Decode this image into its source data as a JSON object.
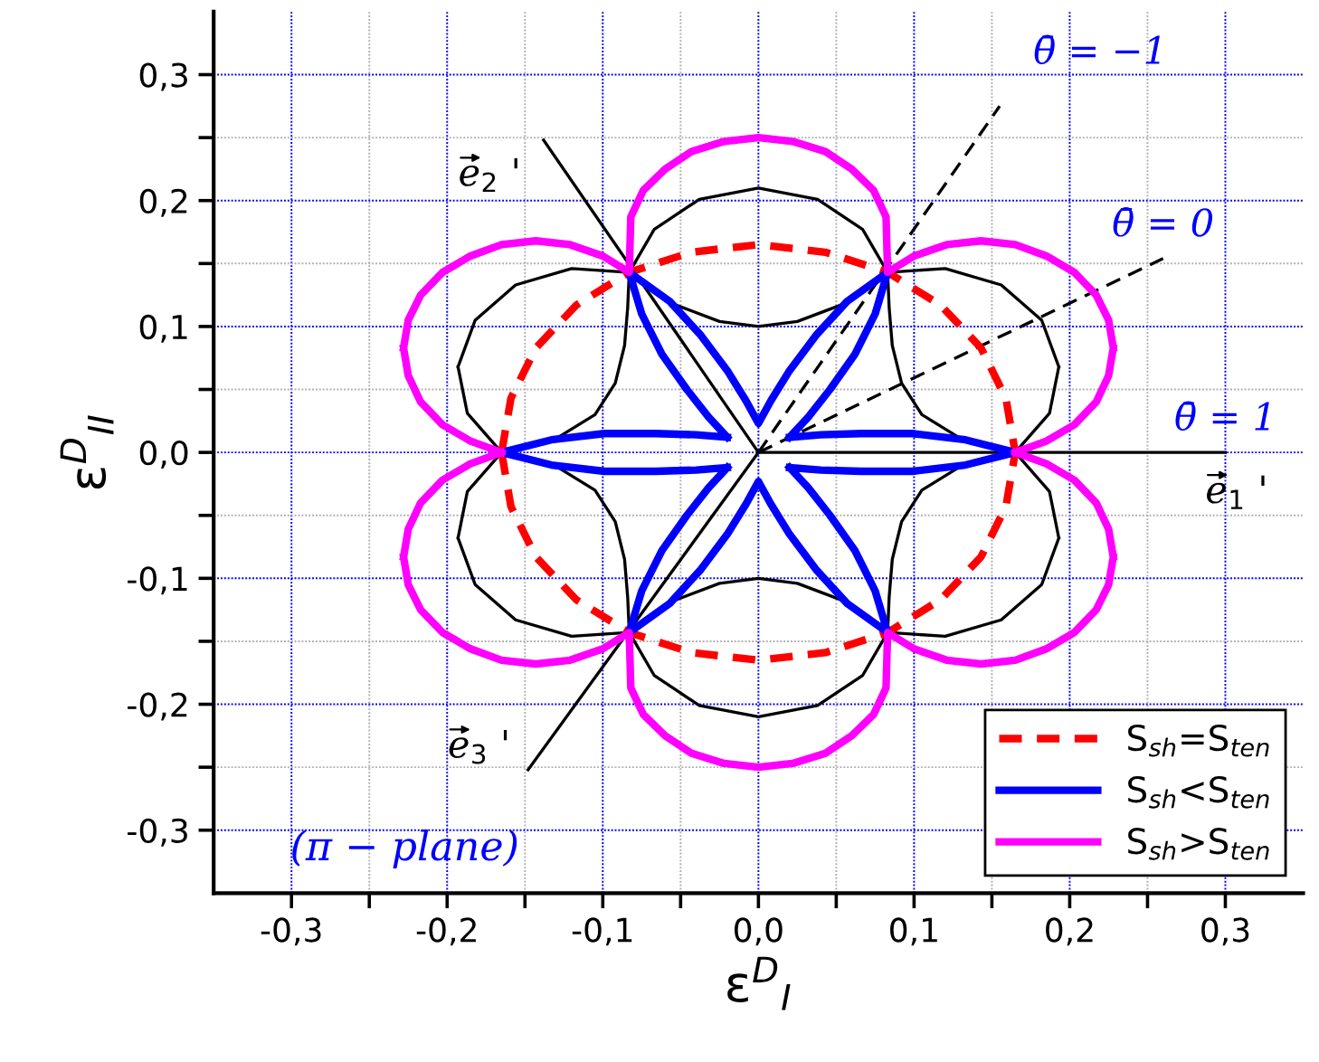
{
  "chart_data": {
    "type": "line",
    "xlabel": "ε$^{D}$$_{I}$",
    "ylabel": "ε$^{D}$$_{II}$",
    "xlim": [
      -0.35,
      0.35
    ],
    "ylim": [
      -0.35,
      0.35
    ],
    "xticks": [
      {
        "value": -0.3,
        "label": "-0,3"
      },
      {
        "value": -0.25,
        "label": null
      },
      {
        "value": -0.2,
        "label": "-0,2"
      },
      {
        "value": -0.15,
        "label": null
      },
      {
        "value": -0.1,
        "label": "-0,1"
      },
      {
        "value": -0.05,
        "label": null
      },
      {
        "value": 0,
        "label": "0,0"
      },
      {
        "value": 0.05,
        "label": null
      },
      {
        "value": 0.1,
        "label": "0,1"
      },
      {
        "value": 0.15,
        "label": null
      },
      {
        "value": 0.2,
        "label": "0,2"
      },
      {
        "value": 0.25,
        "label": null
      },
      {
        "value": 0.3,
        "label": "0,3"
      }
    ],
    "yticks": [
      {
        "value": -0.3,
        "label": "-0,3"
      },
      {
        "value": -0.25,
        "label": null
      },
      {
        "value": -0.2,
        "label": "-0,2"
      },
      {
        "value": -0.15,
        "label": null
      },
      {
        "value": -0.1,
        "label": "-0,1"
      },
      {
        "value": -0.05,
        "label": null
      },
      {
        "value": 0,
        "label": "0,0"
      },
      {
        "value": 0.05,
        "label": null
      },
      {
        "value": 0.1,
        "label": "0,1"
      },
      {
        "value": 0.15,
        "label": null
      },
      {
        "value": 0.2,
        "label": "0,2"
      },
      {
        "value": 0.25,
        "label": null
      },
      {
        "value": 0.3,
        "label": "0,3"
      }
    ],
    "grid": true,
    "legend": "bottom right",
    "annotations": [
      {
        "text": "θ̄ = −1",
        "x": 0.155,
        "y": 0.275
      },
      {
        "text": "θ̄ = 0",
        "x": 0.26,
        "y": 0.154
      },
      {
        "text": "θ̄ = 1",
        "x": 0.3,
        "y": 0
      },
      {
        "text": "e$_{1}$ '",
        "x": 0.3,
        "y": 0
      },
      {
        "text": "e$_{2}$ '",
        "x": -0.138,
        "y": 0.248
      },
      {
        "text": "e$_{3}$ '",
        "x": -0.148,
        "y": -0.252
      },
      "(π − plane)"
    ],
    "series": [
      {
        "type": "line",
        "color": "#000000",
        "line_style": "solid",
        "x": [
          0.165,
          0.187,
          0.193,
          null,
          0.193,
          0.182,
          0.156,
          0.12,
          0.083,
          0.067,
          0.038,
          0,
          -0.038,
          -0.067,
          -0.083,
          -0.12,
          -0.156,
          -0.182,
          -0.193,
          null,
          -0.193,
          -0.187,
          -0.165,
          null,
          -0.165,
          -0.187,
          -0.193,
          null,
          -0.193,
          -0.182,
          -0.156,
          -0.12,
          -0.083,
          -0.067,
          -0.038,
          0,
          0.038,
          0.067,
          0.083,
          0.12,
          0.156,
          0.182,
          0.193,
          null,
          0.193,
          0.187,
          0.165
        ],
        "values": [
          0,
          0.031,
          0.068,
          null,
          0.068,
          0.105,
          0.133,
          0.146,
          0.143,
          0.177,
          0.201,
          0.21,
          0.201,
          0.177,
          0.143,
          0.146,
          0.133,
          0.105,
          0.068,
          null,
          0.068,
          0.031,
          0,
          null,
          0,
          -0.031,
          -0.068,
          null,
          -0.068,
          -0.105,
          -0.133,
          -0.146,
          -0.143,
          -0.177,
          -0.201,
          -0.21,
          -0.201,
          -0.177,
          -0.143,
          -0.146,
          -0.133,
          -0.105,
          -0.068,
          null,
          -0.068,
          -0.031,
          0
        ]
      },
      {
        "type": "line",
        "color": "#000000",
        "line_style": "solid",
        "x": [
          0.165,
          0.13,
          0.105,
          0.092,
          0.086,
          0.084,
          0.083,
          0.055,
          0.025,
          0,
          -0.025,
          -0.055,
          -0.083,
          -0.084,
          -0.086,
          -0.092,
          -0.105,
          -0.13,
          -0.165,
          null,
          -0.165,
          -0.13,
          -0.105,
          -0.092,
          -0.086,
          -0.084,
          -0.083,
          -0.055,
          -0.025,
          0,
          0.025,
          0.055,
          0.083,
          0.084,
          0.086,
          0.092,
          0.105,
          0.13,
          0.165
        ],
        "values": [
          0,
          0.011,
          0.03,
          0.055,
          0.085,
          0.115,
          0.143,
          0.118,
          0.104,
          0.1,
          0.104,
          0.118,
          0.143,
          0.115,
          0.085,
          0.055,
          0.03,
          0.011,
          0,
          null,
          0,
          -0.011,
          -0.03,
          -0.055,
          -0.085,
          -0.115,
          -0.143,
          -0.118,
          -0.104,
          -0.1,
          -0.104,
          -0.118,
          -0.143,
          -0.115,
          -0.085,
          -0.055,
          -0.03,
          -0.011,
          0
        ]
      },
      {
        "type": "line",
        "color": "#000000",
        "line_style": "solid",
        "x": [
          -0.138,
          0,
          0.3
        ],
        "values": [
          0.248,
          0,
          0
        ]
      },
      {
        "type": "line",
        "color": "#000000",
        "line_style": "solid",
        "x": [
          -0.148,
          0
        ],
        "values": [
          -0.252,
          0
        ]
      },
      {
        "type": "line",
        "color": "#000000",
        "line_style": "dashed",
        "x": [
          0,
          0.155
        ],
        "values": [
          0,
          0.275
        ]
      },
      {
        "type": "line",
        "color": "#000000",
        "line_style": "dashed",
        "x": [
          0,
          0.26
        ],
        "values": [
          0,
          0.154
        ]
      },
      {
        "type": "line",
        "name": "S$_{sh}$=S$_{ten}$",
        "color": "#ff0000",
        "line_style": "dashed",
        "x": [
          -0.165,
          -0.159,
          -0.143,
          -0.117,
          -0.083,
          -0.043,
          0,
          0.043,
          0.083,
          0.117,
          0.143,
          0.159,
          0.165,
          null,
          -0.165,
          -0.159,
          -0.143,
          -0.117,
          -0.083,
          -0.043,
          0,
          0.043,
          0.083,
          0.117,
          0.143,
          0.159,
          0.165
        ],
        "values": [
          0,
          0.043,
          0.083,
          0.117,
          0.143,
          0.159,
          0.165,
          0.159,
          0.143,
          0.117,
          0.083,
          0.043,
          0,
          null,
          0,
          -0.043,
          -0.083,
          -0.117,
          -0.143,
          -0.159,
          -0.165,
          -0.159,
          -0.143,
          -0.117,
          -0.083,
          -0.043,
          0
        ]
      },
      {
        "type": "line",
        "name": "S$_{sh}$<S$_{ten}$",
        "color": "#0000ff",
        "line_style": "solid",
        "x": [
          0.02,
          0.04,
          0.066,
          0.099,
          0.133,
          0.165,
          null,
          0.02,
          0.032,
          0.046,
          0.062,
          0.075,
          0.083,
          null,
          -0.083,
          -0.057,
          -0.037,
          -0.02,
          -0.008,
          0,
          0.008,
          0.02,
          0.037,
          0.057,
          0.083,
          null,
          -0.083,
          -0.075,
          -0.062,
          -0.046,
          -0.032,
          -0.02,
          null,
          -0.165,
          -0.133,
          -0.099,
          -0.066,
          -0.04,
          -0.02,
          null,
          -0.165,
          -0.133,
          -0.099,
          -0.066,
          -0.04,
          -0.02,
          null,
          -0.083,
          -0.075,
          -0.062,
          -0.046,
          -0.032,
          -0.02,
          null,
          -0.083,
          -0.057,
          -0.037,
          -0.02,
          -0.008,
          0,
          0.008,
          0.02,
          0.037,
          0.057,
          0.083,
          null,
          0.02,
          0.032,
          0.046,
          0.062,
          0.075,
          0.083,
          null,
          0.02,
          0.04,
          0.066,
          0.099,
          0.133,
          0.165
        ],
        "values": [
          0.012,
          0.014,
          0.015,
          0.015,
          0.01,
          0,
          null,
          0.012,
          0.028,
          0.05,
          0.078,
          0.11,
          0.143,
          null,
          0.143,
          0.12,
          0.093,
          0.065,
          0.041,
          0.023,
          0.041,
          0.065,
          0.093,
          0.12,
          0.143,
          null,
          0.143,
          0.11,
          0.078,
          0.05,
          0.028,
          0.012,
          null,
          0,
          0.01,
          0.015,
          0.015,
          0.014,
          0.012,
          null,
          0,
          -0.01,
          -0.015,
          -0.015,
          -0.014,
          -0.012,
          null,
          -0.143,
          -0.11,
          -0.078,
          -0.05,
          -0.028,
          -0.012,
          null,
          -0.143,
          -0.12,
          -0.093,
          -0.065,
          -0.041,
          -0.023,
          -0.041,
          -0.065,
          -0.093,
          -0.12,
          -0.143,
          null,
          -0.012,
          -0.028,
          -0.05,
          -0.078,
          -0.11,
          -0.143,
          null,
          -0.012,
          -0.014,
          -0.015,
          -0.015,
          -0.01,
          0
        ]
      },
      {
        "type": "line",
        "name": "S$_{sh}$>S$_{ten}$",
        "color": "#ff00ff",
        "line_style": "solid",
        "x": [
          0.165,
          0.185,
          0.203,
          0.217,
          0.225,
          0.228,
          null,
          0.228,
          0.225,
          0.217,
          0.203,
          0.185,
          0.165,
          0.143,
          0.121,
          0.1,
          0.083,
          0.082,
          0.074,
          0.06,
          0.043,
          0.022,
          0,
          -0.022,
          -0.043,
          -0.06,
          -0.074,
          -0.082,
          -0.083,
          -0.1,
          -0.121,
          -0.143,
          -0.165,
          -0.185,
          -0.203,
          -0.217,
          -0.225,
          -0.228,
          null,
          -0.228,
          -0.225,
          -0.217,
          -0.203,
          -0.185,
          -0.165,
          null,
          -0.228,
          -0.225,
          -0.217,
          -0.203,
          -0.185,
          -0.165,
          null,
          -0.228,
          -0.225,
          -0.217,
          -0.203,
          -0.185,
          -0.165,
          -0.143,
          -0.121,
          -0.1,
          -0.083,
          -0.082,
          -0.074,
          -0.06,
          -0.043,
          -0.022,
          0,
          0.022,
          0.043,
          0.06,
          0.074,
          0.082,
          0.083,
          0.1,
          0.121,
          0.143,
          0.165,
          0.185,
          0.203,
          0.217,
          0.225,
          0.228,
          null,
          0.165,
          0.185,
          0.203,
          0.217,
          0.225,
          0.228
        ],
        "values": [
          0,
          0.009,
          0.022,
          0.04,
          0.061,
          0.083,
          null,
          0.083,
          0.105,
          0.125,
          0.143,
          0.156,
          0.165,
          0.168,
          0.165,
          0.156,
          0.143,
          0.187,
          0.208,
          0.225,
          0.239,
          0.247,
          0.25,
          0.247,
          0.239,
          0.225,
          0.208,
          0.187,
          0.143,
          0.156,
          0.165,
          0.168,
          0.165,
          0.156,
          0.143,
          0.125,
          0.105,
          0.083,
          null,
          0.083,
          0.061,
          0.04,
          0.022,
          0.009,
          0,
          null,
          -0.083,
          -0.061,
          -0.04,
          -0.022,
          -0.009,
          0,
          null,
          -0.083,
          -0.105,
          -0.125,
          -0.143,
          -0.156,
          -0.165,
          -0.168,
          -0.165,
          -0.156,
          -0.143,
          -0.187,
          -0.208,
          -0.225,
          -0.239,
          -0.247,
          -0.25,
          -0.247,
          -0.239,
          -0.225,
          -0.208,
          -0.187,
          -0.143,
          -0.156,
          -0.165,
          -0.168,
          -0.165,
          -0.156,
          -0.143,
          -0.125,
          -0.105,
          -0.083,
          null,
          0,
          -0.009,
          -0.022,
          -0.04,
          -0.061,
          -0.083
        ]
      }
    ]
  }
}
